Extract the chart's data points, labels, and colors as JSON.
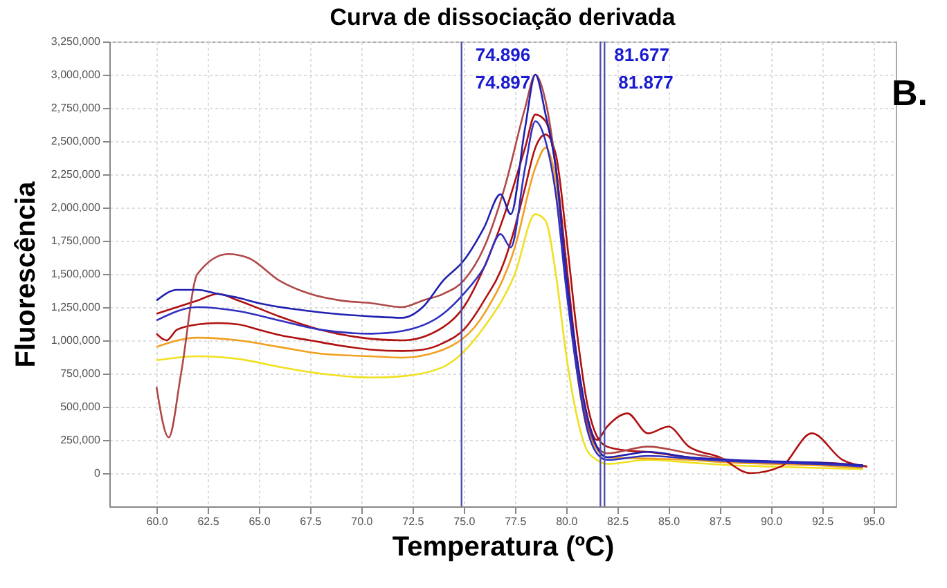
{
  "chart_data": {
    "type": "line",
    "title": "Curva de dissociação derivada",
    "xlabel": "Temperatura (ºC)",
    "ylabel": "Fluorescência",
    "xlim": [
      57.7,
      96.1
    ],
    "ylim": [
      -250000,
      3250000
    ],
    "xticks": [
      {
        "value": 60,
        "label": "60.0"
      },
      {
        "value": 62.5,
        "label": "62.5"
      },
      {
        "value": 65,
        "label": "65.0"
      },
      {
        "value": 67.5,
        "label": "67.5"
      },
      {
        "value": 70,
        "label": "70.0"
      },
      {
        "value": 72.5,
        "label": "72.5"
      },
      {
        "value": 75,
        "label": "75.0"
      },
      {
        "value": 77.5,
        "label": "77.5"
      },
      {
        "value": 80,
        "label": "80.0"
      },
      {
        "value": 82.5,
        "label": "82.5"
      },
      {
        "value": 85,
        "label": "85.0"
      },
      {
        "value": 87.5,
        "label": "87.5"
      },
      {
        "value": 90,
        "label": "90.0"
      },
      {
        "value": 92.5,
        "label": "92.5"
      },
      {
        "value": 95,
        "label": "95.0"
      }
    ],
    "yticks": [
      0,
      {
        "value": 250000,
        "label": "250,000"
      },
      {
        "value": 500000,
        "label": "500,000"
      },
      {
        "value": 750000,
        "label": "750,000"
      },
      {
        "value": 1000000,
        "label": "1,000,000"
      },
      {
        "value": 1250000,
        "label": "1,250,000"
      },
      {
        "value": 1500000,
        "label": "1,500,000"
      },
      {
        "value": 1750000,
        "label": "1,750,000"
      },
      {
        "value": 2000000,
        "label": "2,000,000"
      },
      {
        "value": 2250000,
        "label": "2,250,000"
      },
      {
        "value": 2500000,
        "label": "2,500,000"
      },
      {
        "value": 2750000,
        "label": "2,750,000"
      },
      {
        "value": 3000000,
        "label": "3,000,000"
      },
      {
        "value": 3250000,
        "label": "3,250,000"
      }
    ],
    "grid": true,
    "legend": false,
    "line_style": "solid",
    "marker": "none",
    "series": [
      {
        "color": "#f0e020",
        "x": [
          60,
          62,
          64,
          66,
          68,
          70.5,
          72,
          74,
          76,
          77.5,
          78.5,
          79,
          79.5,
          80,
          80.5,
          81,
          81.5,
          82,
          84,
          86,
          88,
          90,
          92,
          94.5
        ],
        "values": [
          850000,
          880000,
          860000,
          800000,
          750000,
          720000,
          730000,
          800000,
          1100000,
          1500000,
          1950000,
          1900000,
          1500000,
          900000,
          450000,
          180000,
          100000,
          70000,
          100000,
          80000,
          60000,
          50000,
          40000,
          30000
        ]
      },
      {
        "color": "#f0a020",
        "x": [
          60,
          62,
          64,
          66,
          68,
          70.5,
          72,
          74,
          76,
          77.5,
          78.5,
          79,
          79.5,
          80,
          80.5,
          81,
          81.5,
          82,
          84,
          86,
          88,
          90,
          92,
          94.5
        ],
        "values": [
          950000,
          1020000,
          1000000,
          950000,
          900000,
          880000,
          870000,
          930000,
          1200000,
          1700000,
          2300000,
          2450000,
          2200000,
          1500000,
          800000,
          350000,
          180000,
          120000,
          110000,
          100000,
          80000,
          70000,
          60000,
          40000
        ]
      },
      {
        "color": "#b01010",
        "x": [
          60,
          60.5,
          61,
          62,
          63,
          64,
          65,
          66,
          67.5,
          69,
          70.5,
          72,
          73,
          74,
          75,
          76,
          77,
          77.5,
          78,
          78.5,
          79,
          79.5,
          80,
          80.5,
          81,
          81.5,
          82,
          83,
          84,
          85,
          86,
          87.5,
          89,
          90.5,
          92,
          93.5,
          94.7
        ],
        "values": [
          1050000,
          1000000,
          1080000,
          1120000,
          1130000,
          1120000,
          1080000,
          1040000,
          1000000,
          960000,
          930000,
          920000,
          930000,
          980000,
          1080000,
          1300000,
          1600000,
          1850000,
          2150000,
          2450000,
          2550000,
          2400000,
          1800000,
          1100000,
          550000,
          280000,
          200000,
          170000,
          160000,
          140000,
          120000,
          100000,
          90000,
          80000,
          80000,
          70000,
          50000
        ]
      },
      {
        "color": "#b01010",
        "x": [
          60,
          61,
          62,
          63,
          64,
          66,
          68,
          70,
          72,
          74,
          75,
          76,
          77,
          78,
          78.5,
          79,
          79.5,
          80,
          80.5,
          81,
          81.5,
          82,
          83,
          84,
          85,
          86,
          87.5,
          89,
          90.5,
          92,
          93.5,
          94.7
        ],
        "values": [
          1200000,
          1250000,
          1300000,
          1350000,
          1300000,
          1180000,
          1080000,
          1020000,
          1000000,
          1100000,
          1250000,
          1550000,
          1950000,
          2450000,
          2700000,
          2650000,
          2300000,
          1600000,
          900000,
          450000,
          250000,
          350000,
          450000,
          300000,
          350000,
          200000,
          120000,
          0,
          50000,
          300000,
          100000,
          50000
        ]
      },
      {
        "color": "#b04848",
        "x": [
          60,
          60.6,
          61.2,
          62,
          63.5,
          64.5,
          66,
          67.5,
          69,
          70.5,
          72,
          73,
          74,
          75,
          76,
          77,
          78,
          78.5,
          79,
          79.5,
          80,
          80.5,
          81,
          81.5,
          82,
          84,
          86,
          88,
          90,
          92,
          94.5
        ],
        "values": [
          650000,
          270000,
          750000,
          1500000,
          1650000,
          1620000,
          1450000,
          1350000,
          1300000,
          1280000,
          1250000,
          1300000,
          1350000,
          1450000,
          1700000,
          2150000,
          2750000,
          3000000,
          2800000,
          2300000,
          1500000,
          850000,
          400000,
          200000,
          150000,
          200000,
          150000,
          100000,
          80000,
          70000,
          60000
        ]
      },
      {
        "color": "#2020b0",
        "x": [
          60,
          61,
          62,
          63,
          64,
          65,
          67.5,
          70.5,
          72,
          73,
          74,
          75,
          76,
          76.8,
          77.3,
          78,
          78.5,
          79,
          79.5,
          80,
          80.5,
          81,
          81.5,
          82,
          83,
          84,
          86,
          88,
          90,
          92,
          94.5
        ],
        "values": [
          1300000,
          1380000,
          1380000,
          1350000,
          1320000,
          1280000,
          1220000,
          1180000,
          1170000,
          1250000,
          1450000,
          1600000,
          1850000,
          2100000,
          1950000,
          2600000,
          3000000,
          2700000,
          2300000,
          1500000,
          900000,
          450000,
          200000,
          120000,
          140000,
          160000,
          120000,
          100000,
          90000,
          80000,
          60000
        ]
      },
      {
        "color": "#3030c0",
        "x": [
          60,
          62,
          64,
          66,
          68,
          70.5,
          72,
          74,
          75,
          76,
          76.8,
          77.3,
          78,
          78.5,
          79,
          79.5,
          80,
          80.5,
          81,
          81.5,
          82,
          84,
          86,
          88,
          90,
          92,
          94.5
        ],
        "values": [
          1150000,
          1250000,
          1220000,
          1150000,
          1080000,
          1050000,
          1070000,
          1200000,
          1350000,
          1550000,
          1800000,
          1700000,
          2300000,
          2650000,
          2500000,
          2100000,
          1400000,
          800000,
          350000,
          150000,
          100000,
          130000,
          110000,
          90000,
          80000,
          70000,
          50000
        ]
      }
    ],
    "ref_lines": [
      {
        "axis": "x",
        "value": 74.896,
        "label": "74.896",
        "color": "#5050a8"
      },
      {
        "axis": "x",
        "value": 81.677,
        "label": "81.677",
        "color": "#5050a8"
      },
      {
        "axis": "x",
        "value": 81.877,
        "label": "81.877",
        "color": "#5050a8"
      }
    ],
    "annotations": [
      {
        "text": "74.897",
        "x": 74.897
      },
      "B."
    ]
  }
}
